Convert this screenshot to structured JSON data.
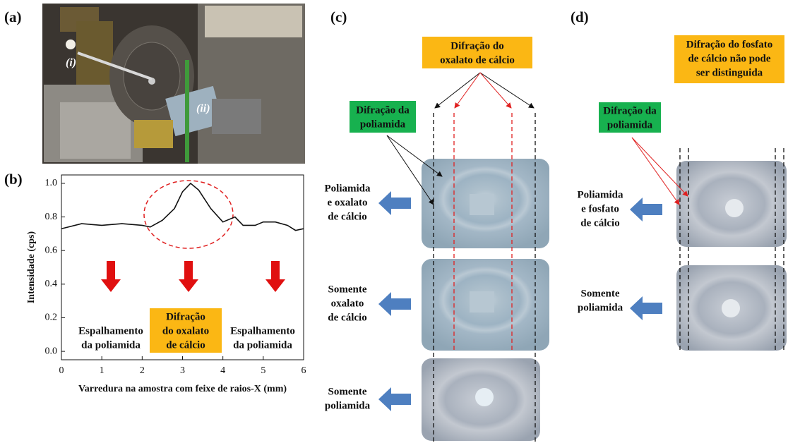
{
  "panels": {
    "a": {
      "label": "(a)",
      "annotations": [
        "(i)",
        "(ii)"
      ]
    },
    "b": {
      "label": "(b)"
    },
    "c": {
      "label": "(c)",
      "callouts": [
        [
          "Difração do",
          "oxalato de cálcio"
        ],
        [
          "Difração da",
          "poliamida"
        ]
      ],
      "rows": [
        [
          "Poliamida",
          "e oxalato",
          "de cálcio"
        ],
        [
          "Somente",
          "oxalato",
          "de cálcio"
        ],
        [
          "Somente",
          "poliamida"
        ]
      ]
    },
    "d": {
      "label": "(d)",
      "callouts": [
        [
          "Difração do fosfato",
          "de  cálcio não pode",
          "ser  distinguida"
        ],
        [
          "Difração da",
          "poliamida"
        ]
      ],
      "rows": [
        [
          "Poliamida",
          "e fosfato",
          "de cálcio"
        ],
        [
          "Somente",
          "poliamida"
        ]
      ]
    }
  },
  "chart_data": {
    "type": "line",
    "xlabel": "Varredura na amostra com feixe de raios-X (mm)",
    "ylabel": "Intensidade (cps)",
    "x": [
      0,
      0.5,
      1,
      1.5,
      2,
      2.2,
      2.5,
      2.8,
      3.0,
      3.2,
      3.4,
      3.7,
      4.0,
      4.3,
      4.5,
      4.8,
      5.0,
      5.3,
      5.6,
      5.8,
      6.0
    ],
    "values": [
      0.73,
      0.76,
      0.75,
      0.76,
      0.75,
      0.74,
      0.78,
      0.85,
      0.95,
      1.0,
      0.96,
      0.85,
      0.77,
      0.8,
      0.75,
      0.75,
      0.77,
      0.77,
      0.75,
      0.72,
      0.73
    ],
    "color": "#111111",
    "xlim": [
      0,
      6
    ],
    "ylim": [
      -0.05,
      1.05
    ],
    "xticks": [
      0,
      1,
      2,
      3,
      4,
      5,
      6
    ],
    "yticks": [
      {
        "value": 0,
        "label": "0.0"
      },
      {
        "value": 0.2,
        "label": "0.2"
      },
      {
        "value": 0.4,
        "label": "0.4"
      },
      {
        "value": 0.6,
        "label": "0.6"
      },
      {
        "value": 0.8,
        "label": "0.8"
      },
      {
        "value": 1.0,
        "label": "1.0"
      }
    ],
    "annotations": [
      [
        "Espalhamento",
        "da poliamida"
      ],
      [
        "Difração",
        "do oxalato",
        "de cálcio"
      ],
      [
        "Espalhamento",
        "da poliamida"
      ]
    ]
  }
}
